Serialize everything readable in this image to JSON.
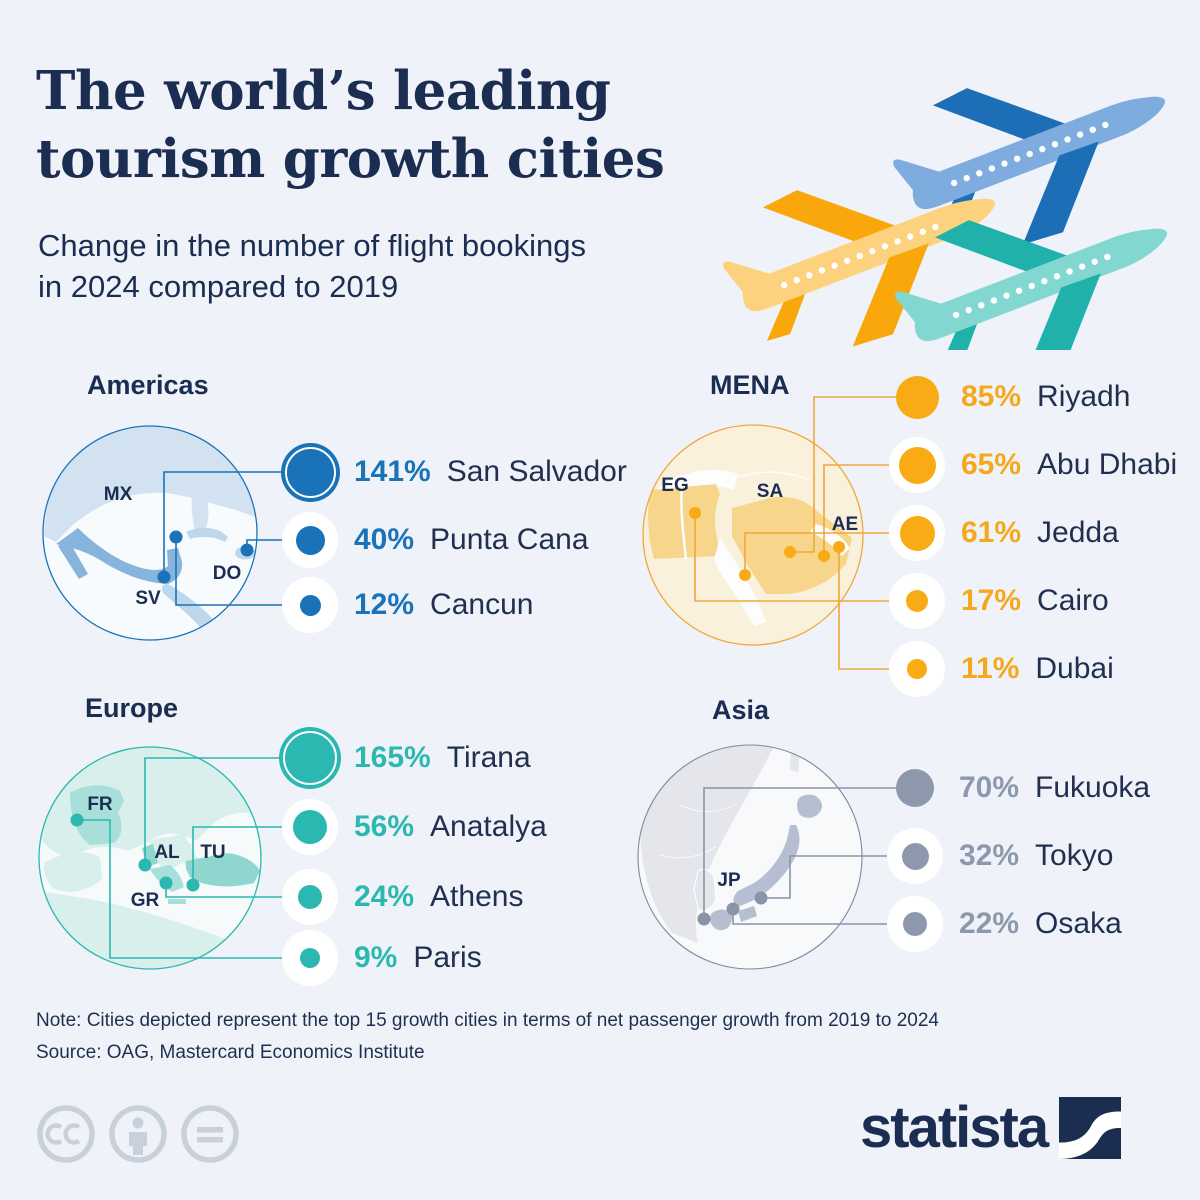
{
  "header": {
    "title_line1": "The world’s leading",
    "title_line2": "tourism growth cities",
    "subtitle_line1": "Change in the number of flight bookings",
    "subtitle_line2": "in 2024 compared to 2019"
  },
  "regions": [
    {
      "id": "americas",
      "label": "Americas",
      "accent": "#1a73b9",
      "map_labels": [
        "MX",
        "SV",
        "DO"
      ],
      "entries": [
        {
          "pct": "141%",
          "value": 141,
          "city": "San Salvador"
        },
        {
          "pct": "40%",
          "value": 40,
          "city": "Punta Cana"
        },
        {
          "pct": "12%",
          "value": 12,
          "city": "Cancun"
        }
      ]
    },
    {
      "id": "mena",
      "label": "MENA",
      "accent": "#f6a81c",
      "map_labels": [
        "EG",
        "SA",
        "AE"
      ],
      "entries": [
        {
          "pct": "85%",
          "value": 85,
          "city": "Riyadh"
        },
        {
          "pct": "65%",
          "value": 65,
          "city": "Abu Dhabi"
        },
        {
          "pct": "61%",
          "value": 61,
          "city": "Jedda"
        },
        {
          "pct": "17%",
          "value": 17,
          "city": "Cairo"
        },
        {
          "pct": "11%",
          "value": 11,
          "city": "Dubai"
        }
      ]
    },
    {
      "id": "europe",
      "label": "Europe",
      "accent": "#2bb8b0",
      "map_labels": [
        "FR",
        "AL",
        "TU",
        "GR"
      ],
      "entries": [
        {
          "pct": "165%",
          "value": 165,
          "city": "Tirana"
        },
        {
          "pct": "56%",
          "value": 56,
          "city": "Anatalya"
        },
        {
          "pct": "24%",
          "value": 24,
          "city": "Athens"
        },
        {
          "pct": "9%",
          "value": 9,
          "city": "Paris"
        }
      ]
    },
    {
      "id": "asia",
      "label": "Asia",
      "accent": "#8d98ad",
      "map_labels": [
        "JP"
      ],
      "entries": [
        {
          "pct": "70%",
          "value": 70,
          "city": "Fukuoka"
        },
        {
          "pct": "32%",
          "value": 32,
          "city": "Tokyo"
        },
        {
          "pct": "22%",
          "value": 22,
          "city": "Osaka"
        }
      ]
    }
  ],
  "footer": {
    "note": "Note: Cities depicted represent the top 15 growth cities in terms of net passenger growth from 2019 to 2024",
    "source": "Source: OAG, Mastercard Economics Institute",
    "brand": "statista",
    "license_icons": [
      "cc-icon",
      "attribution-icon",
      "no-derivatives-icon"
    ]
  },
  "colors": {
    "background": "#eff3f9",
    "navy": "#1b2d50",
    "americas_blue": "#1a73b9",
    "mena_yellow": "#f6a81c",
    "europe_teal": "#2bb8b0",
    "asia_gray": "#8d98ad",
    "plane_blue_dark": "#1c6eb6",
    "plane_blue_light": "#7facde",
    "plane_yellow_dark": "#f9a70a",
    "plane_yellow_light": "#fdd27e",
    "plane_teal_dark": "#1fb1aa",
    "plane_teal_light": "#82d7d1"
  },
  "chart_data": {
    "type": "bubble",
    "title": "The world’s leading tourism growth cities",
    "subtitle": "Change in the number of flight bookings in 2024 compared to 2019",
    "unit": "percent change in flight bookings, 2024 vs 2019",
    "legend_position": "none",
    "grid": false,
    "groups": [
      {
        "region": "Americas",
        "points": [
          {
            "city": "San Salvador",
            "country_code": "SV",
            "value": 141
          },
          {
            "city": "Punta Cana",
            "country_code": "DO",
            "value": 40
          },
          {
            "city": "Cancun",
            "country_code": "MX",
            "value": 12
          }
        ]
      },
      {
        "region": "MENA",
        "points": [
          {
            "city": "Riyadh",
            "country_code": "SA",
            "value": 85
          },
          {
            "city": "Abu Dhabi",
            "country_code": "AE",
            "value": 65
          },
          {
            "city": "Jedda",
            "country_code": "SA",
            "value": 61
          },
          {
            "city": "Cairo",
            "country_code": "EG",
            "value": 17
          },
          {
            "city": "Dubai",
            "country_code": "AE",
            "value": 11
          }
        ]
      },
      {
        "region": "Europe",
        "points": [
          {
            "city": "Tirana",
            "country_code": "AL",
            "value": 165
          },
          {
            "city": "Anatalya",
            "country_code": "TU",
            "value": 56
          },
          {
            "city": "Athens",
            "country_code": "GR",
            "value": 24
          },
          {
            "city": "Paris",
            "country_code": "FR",
            "value": 9
          }
        ]
      },
      {
        "region": "Asia",
        "points": [
          {
            "city": "Fukuoka",
            "country_code": "JP",
            "value": 70
          },
          {
            "city": "Tokyo",
            "country_code": "JP",
            "value": 32
          },
          {
            "city": "Osaka",
            "country_code": "JP",
            "value": 22
          }
        ]
      }
    ]
  }
}
